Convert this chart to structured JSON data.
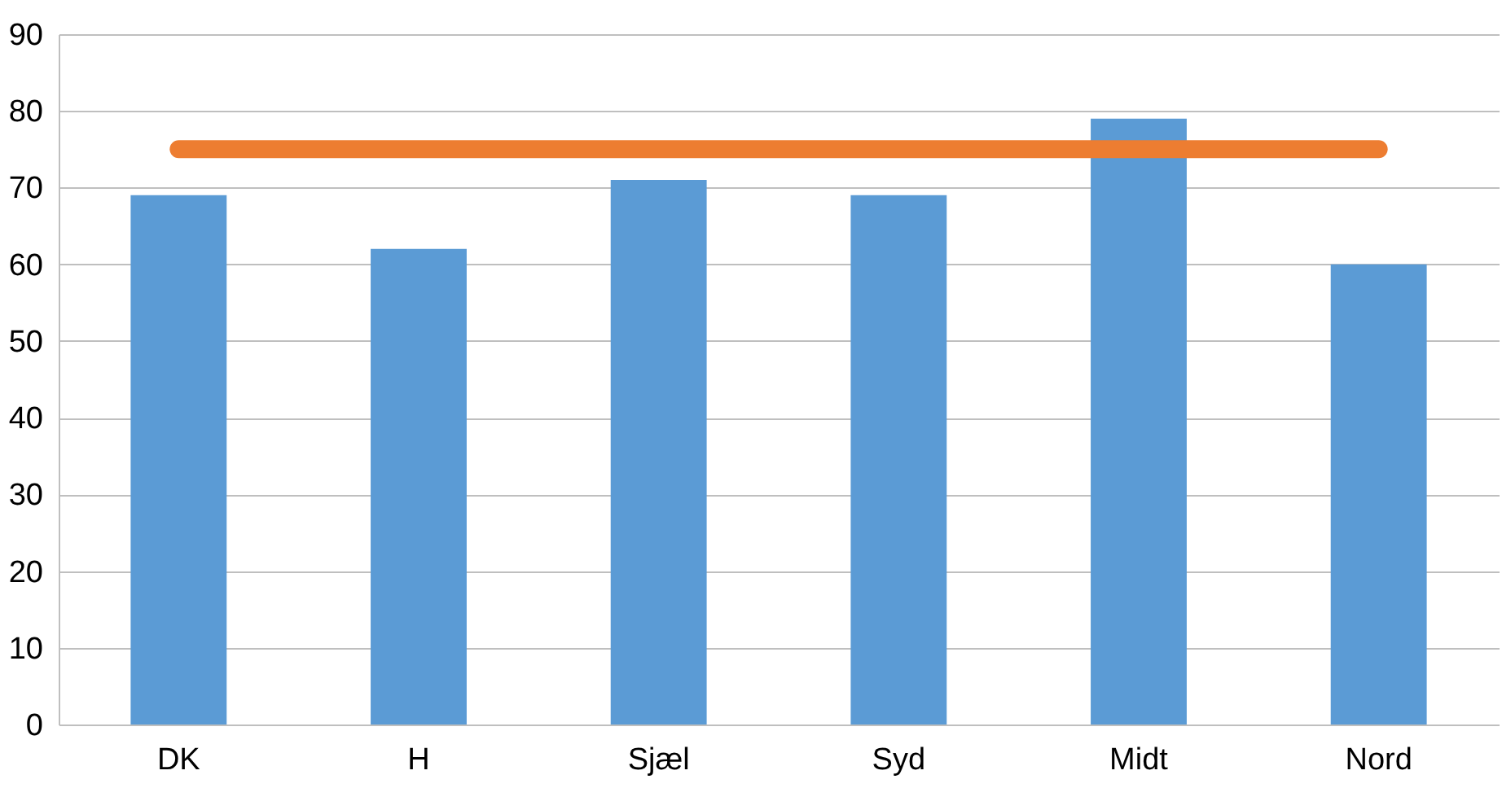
{
  "chart_data": {
    "type": "bar",
    "categories": [
      "DK",
      "H",
      "Sjæl",
      "Syd",
      "Midt",
      "Nord"
    ],
    "series": [
      {
        "color": "#5b9bd5",
        "values": [
          69,
          62,
          71,
          69,
          79,
          60
        ]
      },
      {
        "type": "line",
        "color": "#ed7d31",
        "values": [
          75,
          75,
          75,
          75,
          75,
          75
        ]
      }
    ],
    "ylim": [
      0,
      90
    ],
    "yticks": [
      0,
      10,
      20,
      30,
      40,
      50,
      60,
      70,
      80,
      90
    ],
    "grid": "y"
  }
}
